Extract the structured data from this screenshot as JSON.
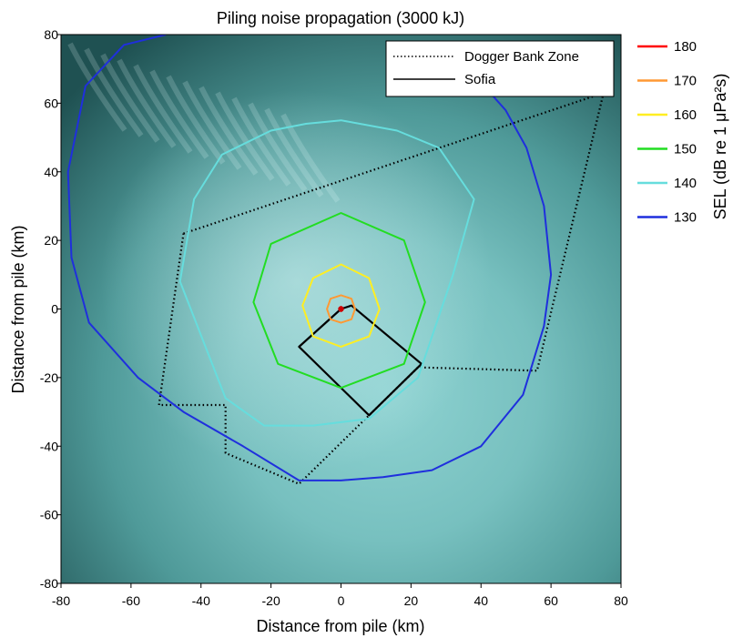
{
  "chart_data": {
    "type": "line",
    "title": "Piling noise propagation (3000 kJ)",
    "xlabel": "Distance from pile (km)",
    "ylabel": "Distance from pile (km)",
    "xlim": [
      -80,
      80
    ],
    "ylim": [
      -80,
      80
    ],
    "xticks": [
      "-80",
      "-60",
      "-40",
      "-20",
      "0",
      "20",
      "40",
      "60",
      "80"
    ],
    "yticks": [
      "-80",
      "-60",
      "-40",
      "-20",
      "0",
      "20",
      "40",
      "60",
      "80"
    ],
    "grid": false,
    "background": "seabed map",
    "pile": {
      "x": 0,
      "y": 0,
      "color": "#cc0000"
    },
    "legend": {
      "placement": "top-right",
      "entries": [
        {
          "name": "Dogger Bank Zone",
          "style": "dotted",
          "color": "#000000"
        },
        {
          "name": "Sofia",
          "style": "solid",
          "color": "#000000"
        }
      ]
    },
    "colorbar": {
      "label": "SEL (dB re 1 μPa²s)",
      "levels": [
        {
          "value": "180",
          "color": "#ff0000"
        },
        {
          "value": "170",
          "color": "#ff9933"
        },
        {
          "value": "160",
          "color": "#ffee22"
        },
        {
          "value": "150",
          "color": "#22dd22"
        },
        {
          "value": "140",
          "color": "#66dddd"
        },
        {
          "value": "130",
          "color": "#1f2fdd"
        }
      ]
    },
    "series": [
      {
        "name": "Dogger Bank Zone",
        "style": "dotted",
        "color": "#000000",
        "x": [
          -45,
          75,
          56,
          22,
          8,
          -12,
          -33,
          -33,
          -52,
          -45
        ],
        "y": [
          22,
          63,
          -18,
          -17,
          -31,
          -51,
          -42,
          -28,
          -28,
          22
        ]
      },
      {
        "name": "Sofia",
        "style": "solid",
        "color": "#000000",
        "x": [
          0,
          3,
          23,
          8,
          -12,
          0
        ],
        "y": [
          0,
          1,
          -16,
          -31,
          -11,
          0
        ]
      },
      {
        "name": "180",
        "color": "#ff0000",
        "type": "closed",
        "x": [
          0.0,
          0.5,
          0.0,
          -0.5
        ],
        "y": [
          0.6,
          0.0,
          -0.6,
          0.0
        ]
      },
      {
        "name": "170",
        "color": "#ff9933",
        "type": "closed",
        "x": [
          0,
          3,
          4,
          3,
          0,
          -3,
          -4,
          -3
        ],
        "y": [
          4,
          3,
          0,
          -3,
          -4,
          -3,
          0,
          3
        ]
      },
      {
        "name": "160",
        "color": "#ffee22",
        "type": "closed",
        "x": [
          0,
          8,
          11,
          8,
          0,
          -8,
          -11,
          -8
        ],
        "y": [
          13,
          9,
          0,
          -8,
          -11,
          -8,
          1,
          9
        ]
      },
      {
        "name": "150",
        "color": "#22dd22",
        "type": "closed",
        "x": [
          0,
          18,
          24,
          18,
          0,
          -18,
          -25,
          -20
        ],
        "y": [
          28,
          20,
          2,
          -16,
          -23,
          -16,
          2,
          19
        ]
      },
      {
        "name": "140",
        "color": "#66dddd",
        "type": "closed",
        "x": [
          0,
          16,
          28,
          38,
          32,
          22,
          8,
          -8,
          -22,
          -33,
          -46,
          -42,
          -34,
          -20,
          -10
        ],
        "y": [
          55,
          52,
          47,
          32,
          10,
          -20,
          -32,
          -34,
          -34,
          -26,
          8,
          32,
          45,
          52,
          54
        ]
      },
      {
        "name": "130",
        "color": "#1f2fdd",
        "type": "open",
        "x": [
          -50,
          -62,
          -73,
          -78,
          -77,
          -72,
          -58,
          -45,
          -28,
          -12,
          0,
          12,
          26,
          40,
          52,
          58,
          60,
          58,
          53,
          47,
          40,
          36
        ],
        "y": [
          80,
          77,
          65,
          40,
          15,
          -4,
          -20,
          -30,
          -40,
          -50,
          -50,
          -49,
          -47,
          -40,
          -25,
          -5,
          10,
          30,
          47,
          58,
          66,
          74
        ]
      }
    ]
  }
}
